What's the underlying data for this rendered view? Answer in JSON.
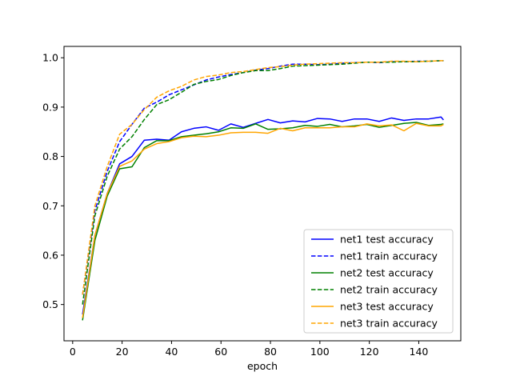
{
  "chart_data": {
    "type": "line",
    "title": "",
    "xlabel": "epoch",
    "ylabel": "",
    "xlim": [
      -3.5,
      157
    ],
    "ylim": [
      0.4265,
      1.023
    ],
    "xticks": [
      0,
      20,
      40,
      60,
      80,
      100,
      120,
      140
    ],
    "yticks": [
      0.5,
      0.6,
      0.7,
      0.8,
      0.9,
      1.0
    ],
    "ytick_labels": [
      "0.5",
      "0.6",
      "0.7",
      "0.8",
      "0.9",
      "1.0"
    ],
    "grid": false,
    "legend_position": "lower-right",
    "x": [
      4,
      9,
      14,
      19,
      24,
      29,
      34,
      39,
      44,
      49,
      54,
      59,
      64,
      69,
      74,
      79,
      84,
      89,
      94,
      99,
      104,
      109,
      114,
      119,
      124,
      129,
      134,
      139,
      144,
      149,
      150
    ],
    "series": [
      {
        "name": "net1 test accuracy",
        "color": "#0000ff",
        "dash": "solid",
        "values": [
          0.48,
          0.64,
          0.725,
          0.785,
          0.8,
          0.833,
          0.835,
          0.833,
          0.85,
          0.857,
          0.86,
          0.853,
          0.866,
          0.859,
          0.867,
          0.875,
          0.868,
          0.872,
          0.87,
          0.877,
          0.876,
          0.871,
          0.876,
          0.876,
          0.871,
          0.878,
          0.873,
          0.876,
          0.876,
          0.88,
          0.874
        ]
      },
      {
        "name": "net1 train accuracy",
        "color": "#0000ff",
        "dash": "dashed",
        "values": [
          0.52,
          0.69,
          0.77,
          0.83,
          0.865,
          0.898,
          0.91,
          0.925,
          0.935,
          0.945,
          0.955,
          0.961,
          0.966,
          0.97,
          0.975,
          0.978,
          0.983,
          0.987,
          0.987,
          0.986,
          0.987,
          0.989,
          0.99,
          0.991,
          0.99,
          0.992,
          0.992,
          0.993,
          0.993,
          0.994,
          0.994
        ]
      },
      {
        "name": "net2 test accuracy",
        "color": "#008000",
        "dash": "solid",
        "values": [
          0.468,
          0.63,
          0.72,
          0.775,
          0.779,
          0.818,
          0.832,
          0.832,
          0.84,
          0.843,
          0.846,
          0.85,
          0.858,
          0.857,
          0.866,
          0.855,
          0.856,
          0.858,
          0.863,
          0.861,
          0.865,
          0.86,
          0.862,
          0.865,
          0.859,
          0.863,
          0.867,
          0.869,
          0.863,
          0.865,
          0.866
        ]
      },
      {
        "name": "net2 train accuracy",
        "color": "#008000",
        "dash": "dashed",
        "values": [
          0.5,
          0.68,
          0.76,
          0.815,
          0.84,
          0.875,
          0.905,
          0.915,
          0.93,
          0.946,
          0.952,
          0.956,
          0.964,
          0.97,
          0.974,
          0.974,
          0.978,
          0.983,
          0.984,
          0.985,
          0.986,
          0.987,
          0.989,
          0.991,
          0.991,
          0.991,
          0.992,
          0.992,
          0.993,
          0.994,
          0.994
        ]
      },
      {
        "name": "net3 test accuracy",
        "color": "#ffa500",
        "dash": "solid",
        "values": [
          0.473,
          0.64,
          0.725,
          0.78,
          0.791,
          0.815,
          0.826,
          0.83,
          0.838,
          0.841,
          0.84,
          0.843,
          0.848,
          0.849,
          0.849,
          0.847,
          0.857,
          0.852,
          0.858,
          0.858,
          0.858,
          0.86,
          0.86,
          0.866,
          0.862,
          0.864,
          0.852,
          0.867,
          0.862,
          0.862,
          0.865
        ]
      },
      {
        "name": "net3 train accuracy",
        "color": "#ffa500",
        "dash": "dashed",
        "values": [
          0.52,
          0.7,
          0.78,
          0.845,
          0.865,
          0.895,
          0.92,
          0.933,
          0.942,
          0.955,
          0.962,
          0.965,
          0.97,
          0.972,
          0.976,
          0.98,
          0.982,
          0.985,
          0.987,
          0.988,
          0.989,
          0.99,
          0.99,
          0.991,
          0.991,
          0.993,
          0.993,
          0.992,
          0.993,
          0.994,
          0.994
        ]
      }
    ]
  }
}
